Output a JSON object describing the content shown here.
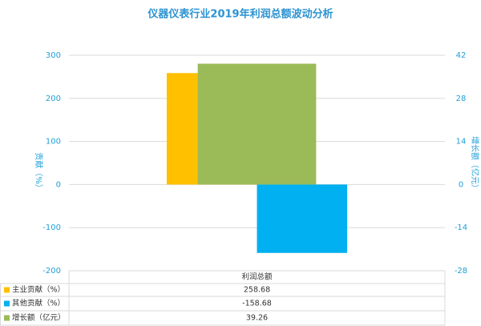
{
  "chart_data": {
    "type": "bar",
    "title": "仪器仪表行业2019年利润总额波动分析",
    "ylabel": "贡献（%）",
    "y2label": "增长额（亿元）",
    "categories": [
      "利润总额"
    ],
    "series": [
      {
        "name": "主业贡献（%）",
        "color": "#ffc000",
        "values": [
          258.68
        ]
      },
      {
        "name": "其他贡献（%）",
        "color": "#00b0f0",
        "values": [
          -158.68
        ]
      },
      {
        "name": "增长额（亿元）",
        "color": "#9bbb59",
        "values": [
          39.26
        ],
        "axis": "y2"
      }
    ],
    "ylim": [
      -200,
      300
    ],
    "yticks": [
      -200,
      -100,
      0,
      100,
      200,
      300
    ],
    "y2lim": [
      -28,
      42
    ],
    "y2ticks": [
      -28,
      -14,
      0,
      14,
      28,
      42
    ],
    "grid": true
  }
}
